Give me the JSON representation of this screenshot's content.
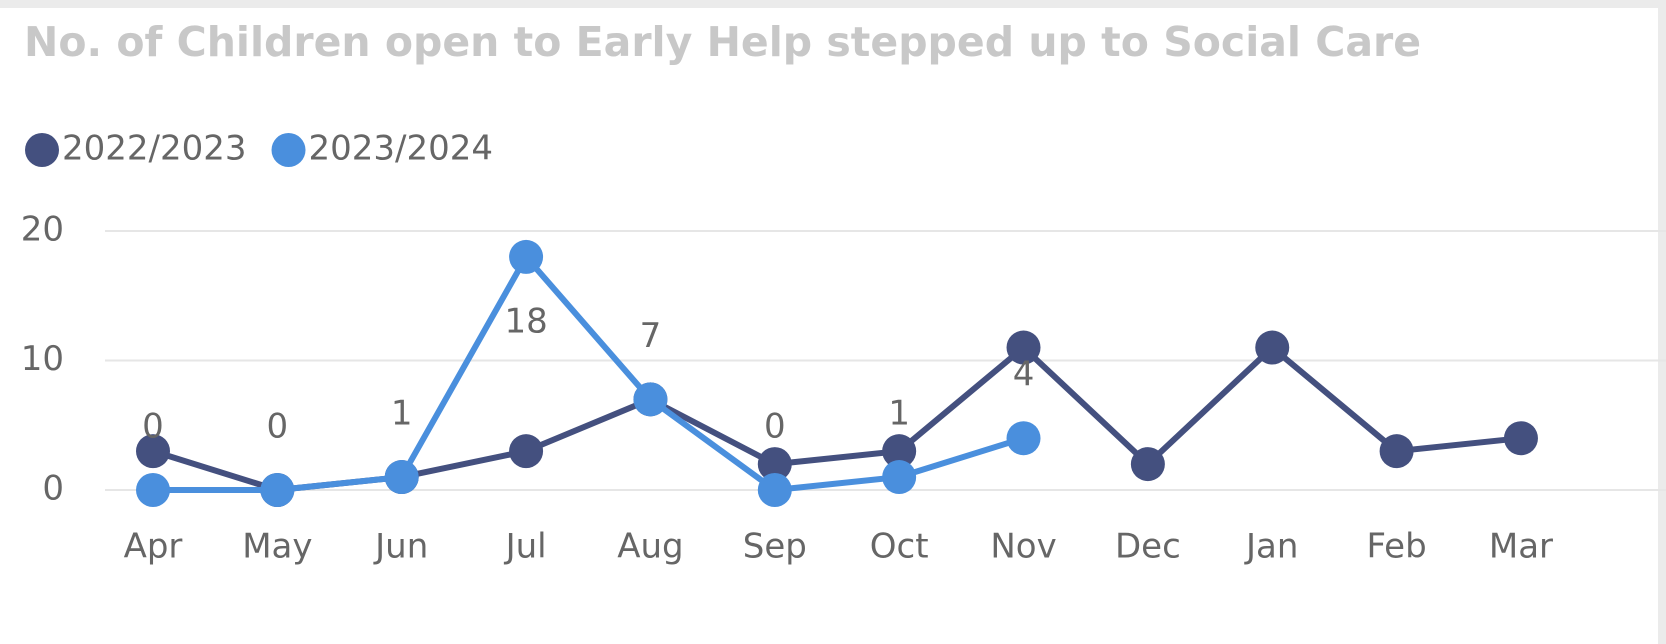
{
  "chart_data": {
    "type": "line",
    "title": "No. of Children open to Early Help stepped up to Social Care",
    "categories": [
      "Apr",
      "May",
      "Jun",
      "Jul",
      "Aug",
      "Sep",
      "Oct",
      "Nov",
      "Dec",
      "Jan",
      "Feb",
      "Mar"
    ],
    "series": [
      {
        "name": "2022/2023",
        "color": "#44507f",
        "values": [
          3,
          0,
          1,
          3,
          7,
          2,
          3,
          11,
          2,
          11,
          3,
          4
        ]
      },
      {
        "name": "2023/2024",
        "color": "#4a8fdd",
        "values": [
          0,
          0,
          1,
          18,
          7,
          0,
          1,
          4,
          null,
          null,
          null,
          null
        ],
        "data_labels": true
      }
    ],
    "ylim": [
      0,
      20
    ],
    "yticks": [
      0,
      10,
      20
    ],
    "grid": true,
    "legend": "top-left"
  }
}
